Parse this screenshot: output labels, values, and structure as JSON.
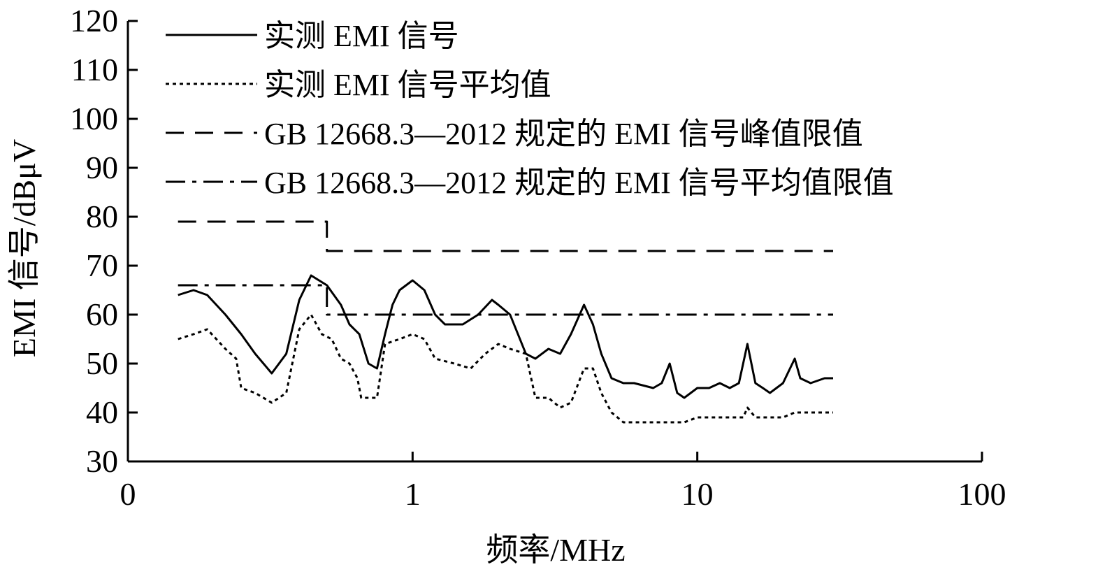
{
  "chart_data": {
    "type": "line",
    "xlabel": "频率/MHz",
    "ylabel": "EMI 信号/dBμV",
    "xscale": "log",
    "xlim": [
      0.1,
      100
    ],
    "ylim": [
      30,
      120
    ],
    "x_tick_labels": [
      "0",
      "1",
      "10",
      "100"
    ],
    "x_tick_values": [
      0.1,
      1,
      10,
      100
    ],
    "y_ticks": [
      30,
      40,
      50,
      60,
      70,
      80,
      90,
      100,
      110,
      120
    ],
    "grid": false,
    "legend_position": "top",
    "series": [
      {
        "name": "实测 EMI 信号",
        "style": "solid",
        "x": [
          0.15,
          0.17,
          0.19,
          0.22,
          0.25,
          0.28,
          0.32,
          0.36,
          0.4,
          0.44,
          0.5,
          0.56,
          0.6,
          0.65,
          0.7,
          0.75,
          0.8,
          0.85,
          0.9,
          1.0,
          1.1,
          1.2,
          1.3,
          1.5,
          1.7,
          1.9,
          2.0,
          2.2,
          2.5,
          2.7,
          3.0,
          3.3,
          3.6,
          4.0,
          4.3,
          4.6,
          5.0,
          5.5,
          6.0,
          7.0,
          7.5,
          8.0,
          8.5,
          9.0,
          10,
          11,
          12,
          13,
          14,
          15,
          16,
          17,
          18,
          20,
          22,
          23,
          25,
          28,
          30
        ],
        "y": [
          64,
          65,
          64,
          60,
          56,
          52,
          48,
          52,
          63,
          68,
          66,
          62,
          58,
          56,
          50,
          49,
          56,
          62,
          65,
          67,
          65,
          60,
          58,
          58,
          60,
          63,
          62,
          60,
          52,
          51,
          53,
          52,
          56,
          62,
          58,
          52,
          47,
          46,
          46,
          45,
          46,
          50,
          44,
          43,
          45,
          45,
          46,
          45,
          46,
          54,
          46,
          45,
          44,
          46,
          51,
          47,
          46,
          47,
          47
        ]
      },
      {
        "name": "实测 EMI 信号平均值",
        "style": "dotted",
        "x": [
          0.15,
          0.17,
          0.19,
          0.22,
          0.24,
          0.25,
          0.28,
          0.32,
          0.36,
          0.4,
          0.44,
          0.48,
          0.52,
          0.56,
          0.6,
          0.64,
          0.66,
          0.7,
          0.75,
          0.8,
          0.9,
          1.0,
          1.1,
          1.2,
          1.4,
          1.6,
          1.8,
          2.0,
          2.2,
          2.5,
          2.7,
          3.0,
          3.3,
          3.6,
          4.0,
          4.3,
          4.6,
          5.0,
          5.5,
          6.0,
          7.0,
          7.8,
          8.0,
          9.0,
          10,
          12,
          14,
          14.5,
          15,
          16,
          18,
          20,
          22,
          25,
          28,
          30
        ],
        "y": [
          55,
          56,
          57,
          53,
          51,
          45,
          44,
          42,
          44,
          57,
          60,
          56,
          55,
          51,
          50,
          47,
          43,
          43,
          43,
          54,
          55,
          56,
          55,
          51,
          50,
          49,
          52,
          54,
          53,
          52,
          43,
          43,
          41,
          42,
          49,
          49,
          44,
          40,
          38,
          38,
          38,
          38,
          38,
          38,
          39,
          39,
          39,
          39,
          41,
          39,
          39,
          39,
          40,
          40,
          40,
          40
        ]
      },
      {
        "name": "GB 12668.3—2012 规定的 EMI 信号峰值限值",
        "style": "dashed",
        "x": [
          0.15,
          0.5,
          0.5,
          30
        ],
        "y": [
          79,
          79,
          73,
          73
        ]
      },
      {
        "name": "GB 12668.3—2012 规定的 EMI 信号平均值限值",
        "style": "dashdot",
        "x": [
          0.15,
          0.5,
          0.5,
          30
        ],
        "y": [
          66,
          66,
          60,
          60
        ]
      }
    ]
  }
}
